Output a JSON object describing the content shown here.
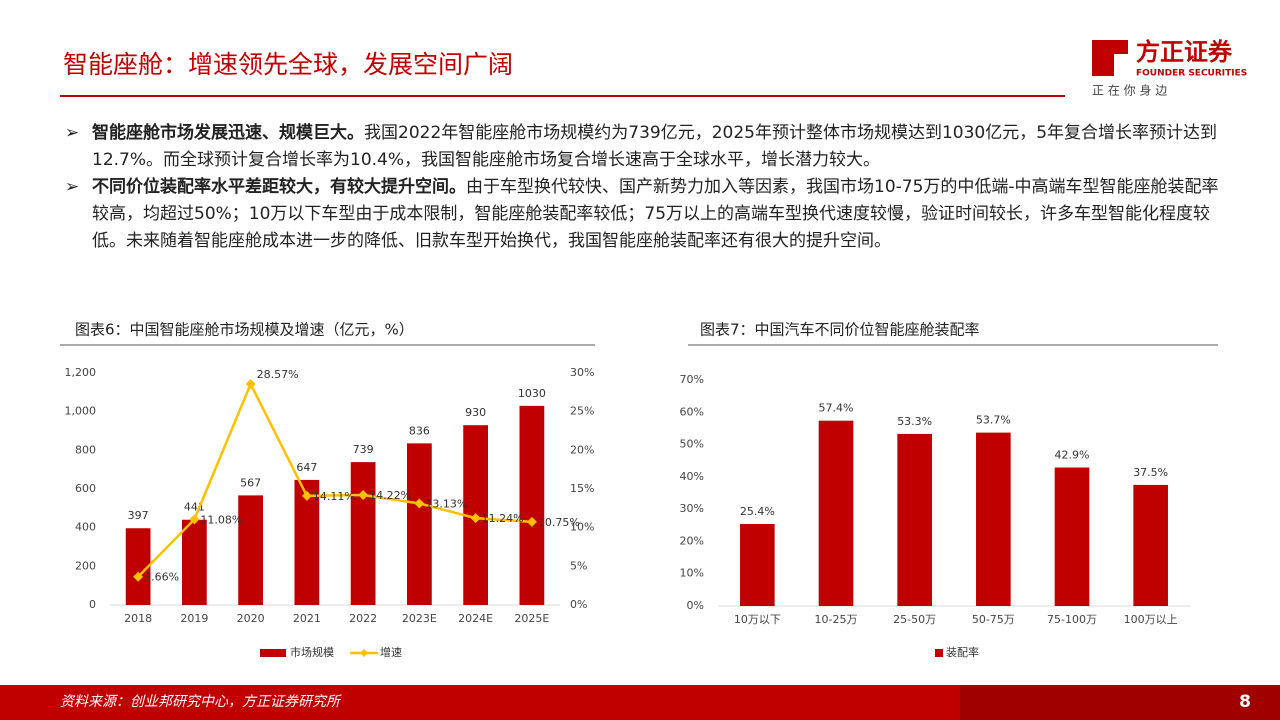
{
  "header": {
    "title": "智能座舱：增速领先全球，发展空间广阔",
    "logo_name": "方正证券",
    "logo_en": "FOUNDER SECURITIES",
    "slogan": "正 在 你 身 边"
  },
  "bullets": [
    {
      "bold": "智能座舱市场发展迅速、规模巨大。",
      "text": "我国2022年智能座舱市场规模约为739亿元，2025年预计整体市场规模达到1030亿元，5年复合增长率预计达到12.7%。而全球预计复合增长率为10.4%，我国智能座舱市场复合增长速高于全球水平，增长潜力较大。"
    },
    {
      "bold": "不同价位装配率水平差距较大，有较大提升空间。",
      "text": "由于车型换代较快、国产新势力加入等因素，我国市场10-75万的中低端-中高端车型智能座舱装配率较高，均超过50%；10万以下车型由于成本限制，智能座舱装配率较低；75万以上的高端车型换代速度较慢，验证时间较长，许多车型智能化程度较低。未来随着智能座舱成本进一步的降低、旧款车型开始换代，我国智能座舱装配率还有很大的提升空间。"
    }
  ],
  "chart_data": [
    {
      "type": "combo",
      "title": "图表6：中国智能座舱市场规模及增速（亿元，%）",
      "categories": [
        "2018",
        "2019",
        "2020",
        "2021",
        "2022",
        "2023E",
        "2024E",
        "2025E"
      ],
      "series": [
        {
          "name": "市场规模",
          "color": "#c00000",
          "values": [
            397,
            441,
            567,
            647,
            739,
            836,
            930,
            1030
          ]
        },
        {
          "name": "增速",
          "color": "#ffc000",
          "axis": "y2",
          "values": [
            3.66,
            11.08,
            28.57,
            14.11,
            14.22,
            13.13,
            11.24,
            10.75
          ],
          "value_labels": [
            "3.66%",
            "11.08%",
            "28.57%",
            "14.11%",
            "14.22%",
            "13.13%",
            "11.24%",
            "10.75%"
          ]
        }
      ],
      "ylim": [
        0,
        1200
      ],
      "yticks": [
        0,
        200,
        400,
        600,
        800,
        {
          "value": 1000,
          "label": "1,000"
        },
        {
          "value": 1200,
          "label": "1,200"
        }
      ],
      "y2lim": [
        0,
        30
      ],
      "y2ticks": [
        {
          "value": 0,
          "label": "0%"
        },
        {
          "value": 5,
          "label": "5%"
        },
        {
          "value": 10,
          "label": "10%"
        },
        {
          "value": 15,
          "label": "15%"
        },
        {
          "value": 20,
          "label": "20%"
        },
        {
          "value": 25,
          "label": "25%"
        },
        {
          "value": 30,
          "label": "30%"
        }
      ]
    },
    {
      "type": "bar",
      "title": "图表7：中国汽车不同价位智能座舱装配率",
      "categories": [
        "10万以下",
        "10-25万",
        "25-50万",
        "50-75万",
        "75-100万",
        "100万以上"
      ],
      "series": [
        {
          "name": "装配率",
          "color": "#c00000",
          "values": [
            25.4,
            57.4,
            53.3,
            53.7,
            42.9,
            37.5
          ],
          "value_labels": [
            "25.4%",
            "57.4%",
            "53.3%",
            "53.7%",
            "42.9%",
            "37.5%"
          ]
        }
      ],
      "ylim": [
        0,
        70
      ],
      "yticks": [
        {
          "value": 0,
          "label": "0%"
        },
        {
          "value": 10,
          "label": "10%"
        },
        {
          "value": 20,
          "label": "20%"
        },
        {
          "value": 30,
          "label": "30%"
        },
        {
          "value": 40,
          "label": "40%"
        },
        {
          "value": 50,
          "label": "50%"
        },
        {
          "value": 60,
          "label": "60%"
        },
        {
          "value": 70,
          "label": "70%"
        }
      ]
    }
  ],
  "footer": {
    "source": "资料来源：创业邦研究中心，方正证券研究所",
    "page": "8"
  }
}
